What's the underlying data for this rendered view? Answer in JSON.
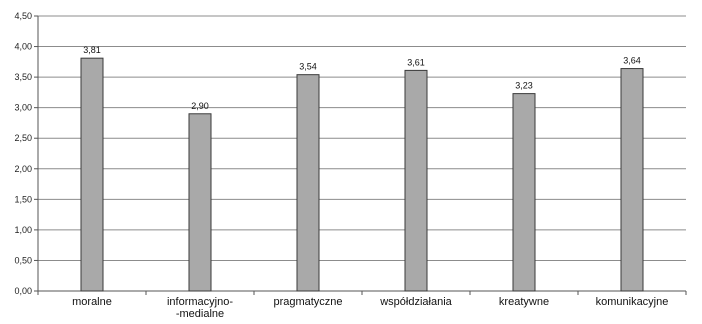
{
  "chart_data": {
    "type": "bar",
    "categories": [
      [
        "moralne"
      ],
      [
        "informacyjno-",
        "-medialne"
      ],
      [
        "pragmatyczne"
      ],
      [
        "współdziałania"
      ],
      [
        "kreatywne"
      ],
      [
        "komunikacyjne"
      ]
    ],
    "values": [
      3.81,
      2.9,
      3.54,
      3.61,
      3.23,
      3.64
    ],
    "value_labels": [
      "3,81",
      "2,90",
      "3,54",
      "3,61",
      "3,23",
      "3,64"
    ],
    "ylim": [
      0,
      4.5
    ],
    "yticks": [
      0,
      0.5,
      1.0,
      1.5,
      2.0,
      2.5,
      3.0,
      3.5,
      4.0,
      4.5
    ],
    "ytick_labels": [
      "0,00",
      "0,50",
      "1,00",
      "1,50",
      "2,00",
      "2,50",
      "3,00",
      "3,50",
      "4,00",
      "4,50"
    ],
    "grid": true,
    "legend": false,
    "title": "",
    "xlabel": "",
    "ylabel": ""
  },
  "colors": {
    "bar_fill": "#a9a9a9",
    "bar_stroke": "#3a3a3a",
    "grid": "#8c8c8c",
    "axis": "#555555"
  }
}
